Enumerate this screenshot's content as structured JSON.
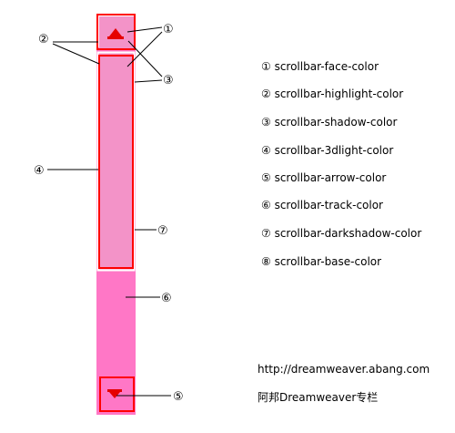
{
  "colors": {
    "track": "#ff77c6",
    "face": "#f393c8",
    "outline_red": "#ff0000",
    "highlight": "#ffffff",
    "arrow": "#e60000",
    "leader": "#000000"
  },
  "callouts": {
    "c1": "①",
    "c2": "②",
    "c3": "③",
    "c4": "④",
    "c5": "⑤",
    "c6": "⑥",
    "c7": "⑦"
  },
  "legend": [
    "① scrollbar-face-color",
    "② scrollbar-highlight-color",
    "③ scrollbar-shadow-color",
    "④ scrollbar-3dlight-color",
    "⑤ scrollbar-arrow-color",
    "⑥ scrollbar-track-color",
    "⑦ scrollbar-darkshadow-color",
    "⑧ scrollbar-base-color"
  ],
  "footer": {
    "url": "http://dreamweaver.abang.com",
    "credit": "阿邦Dreamweaver专栏"
  }
}
